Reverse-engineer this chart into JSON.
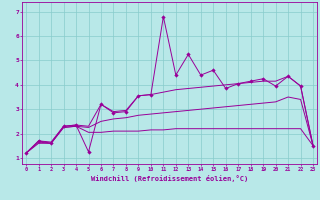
{
  "xlabel": "Windchill (Refroidissement éolien,°C)",
  "background_color": "#b8e8e8",
  "grid_color": "#88cccc",
  "line_color": "#990099",
  "x_ticks": [
    0,
    1,
    2,
    3,
    4,
    5,
    6,
    7,
    8,
    9,
    10,
    11,
    12,
    13,
    14,
    15,
    16,
    17,
    18,
    19,
    20,
    21,
    22,
    23
  ],
  "y_ticks": [
    1,
    2,
    3,
    4,
    5,
    6,
    7
  ],
  "xlim": [
    -0.3,
    23.3
  ],
  "ylim": [
    0.75,
    7.4
  ],
  "series_main": [
    [
      0,
      1.2
    ],
    [
      1,
      1.7
    ],
    [
      2,
      1.6
    ],
    [
      3,
      2.3
    ],
    [
      4,
      2.35
    ],
    [
      5,
      1.25
    ],
    [
      6,
      3.2
    ],
    [
      7,
      2.85
    ],
    [
      8,
      2.9
    ],
    [
      9,
      3.55
    ],
    [
      10,
      3.6
    ],
    [
      11,
      6.8
    ],
    [
      12,
      4.4
    ],
    [
      13,
      5.25
    ],
    [
      14,
      4.4
    ],
    [
      15,
      4.6
    ],
    [
      16,
      3.85
    ],
    [
      17,
      4.05
    ],
    [
      18,
      4.15
    ],
    [
      19,
      4.25
    ],
    [
      20,
      3.95
    ],
    [
      21,
      4.35
    ],
    [
      22,
      3.95
    ],
    [
      23,
      1.5
    ]
  ],
  "series_flat": [
    [
      0,
      1.2
    ],
    [
      1,
      1.6
    ],
    [
      2,
      1.6
    ],
    [
      3,
      2.25
    ],
    [
      4,
      2.3
    ],
    [
      5,
      2.05
    ],
    [
      6,
      2.05
    ],
    [
      7,
      2.1
    ],
    [
      8,
      2.1
    ],
    [
      9,
      2.1
    ],
    [
      10,
      2.15
    ],
    [
      11,
      2.15
    ],
    [
      12,
      2.2
    ],
    [
      13,
      2.2
    ],
    [
      14,
      2.2
    ],
    [
      15,
      2.2
    ],
    [
      16,
      2.2
    ],
    [
      17,
      2.2
    ],
    [
      18,
      2.2
    ],
    [
      19,
      2.2
    ],
    [
      20,
      2.2
    ],
    [
      21,
      2.2
    ],
    [
      22,
      2.2
    ],
    [
      23,
      1.5
    ]
  ],
  "series_mid": [
    [
      0,
      1.2
    ],
    [
      1,
      1.65
    ],
    [
      2,
      1.6
    ],
    [
      3,
      2.25
    ],
    [
      4,
      2.3
    ],
    [
      5,
      2.25
    ],
    [
      6,
      2.5
    ],
    [
      7,
      2.6
    ],
    [
      8,
      2.65
    ],
    [
      9,
      2.75
    ],
    [
      10,
      2.8
    ],
    [
      11,
      2.85
    ],
    [
      12,
      2.9
    ],
    [
      13,
      2.95
    ],
    [
      14,
      3.0
    ],
    [
      15,
      3.05
    ],
    [
      16,
      3.1
    ],
    [
      17,
      3.15
    ],
    [
      18,
      3.2
    ],
    [
      19,
      3.25
    ],
    [
      20,
      3.3
    ],
    [
      21,
      3.5
    ],
    [
      22,
      3.4
    ],
    [
      23,
      1.5
    ]
  ],
  "series_upper": [
    [
      0,
      1.2
    ],
    [
      1,
      1.7
    ],
    [
      2,
      1.65
    ],
    [
      3,
      2.3
    ],
    [
      4,
      2.35
    ],
    [
      5,
      2.3
    ],
    [
      6,
      3.2
    ],
    [
      7,
      2.9
    ],
    [
      8,
      2.95
    ],
    [
      9,
      3.55
    ],
    [
      10,
      3.6
    ],
    [
      11,
      3.7
    ],
    [
      12,
      3.8
    ],
    [
      13,
      3.85
    ],
    [
      14,
      3.9
    ],
    [
      15,
      3.95
    ],
    [
      16,
      4.0
    ],
    [
      17,
      4.05
    ],
    [
      18,
      4.1
    ],
    [
      19,
      4.15
    ],
    [
      20,
      4.15
    ],
    [
      21,
      4.35
    ],
    [
      22,
      3.95
    ],
    [
      23,
      1.5
    ]
  ]
}
